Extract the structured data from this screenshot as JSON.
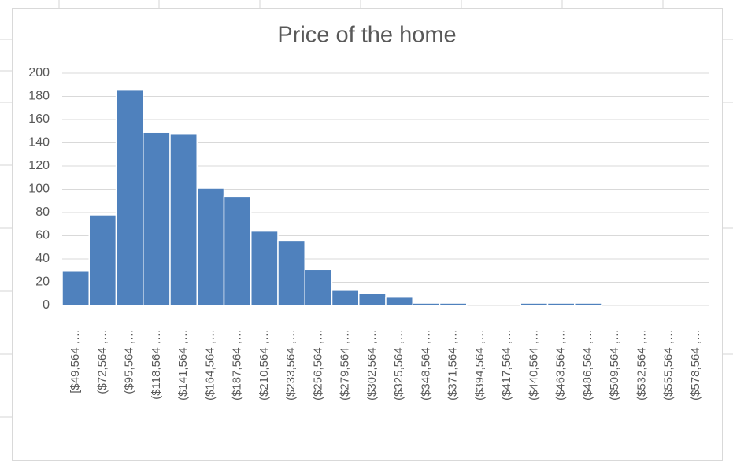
{
  "chart_data": {
    "type": "bar",
    "title": "Price of the home",
    "categories": [
      "[$49,564 ,…",
      "($72,564 ,…",
      "($95,564 ,…",
      "($118,564 ,…",
      "($141,564 ,…",
      "($164,564 ,…",
      "($187,564 ,…",
      "($210,564 ,…",
      "($233,564 ,…",
      "($256,564 ,…",
      "($279,564 ,…",
      "($302,564 ,…",
      "($325,564 ,…",
      "($348,564 ,…",
      "($371,564 ,…",
      "($394,564 ,…",
      "($417,564 ,…",
      "($440,564 ,…",
      "($463,564 ,…",
      "($486,564 ,…",
      "($509,564 ,…",
      "($532,564 ,…",
      "($555,564 ,…",
      "($578,564 ,…"
    ],
    "values": [
      30,
      78,
      186,
      149,
      148,
      101,
      94,
      64,
      56,
      31,
      13,
      10,
      7,
      2,
      2,
      0,
      0,
      2,
      2,
      2,
      0,
      0,
      0,
      0
    ],
    "color": "#4f81bd",
    "ylim": [
      0,
      200
    ],
    "yticks": [
      0,
      20,
      40,
      60,
      80,
      100,
      120,
      140,
      160,
      180,
      200
    ],
    "grid": true
  }
}
